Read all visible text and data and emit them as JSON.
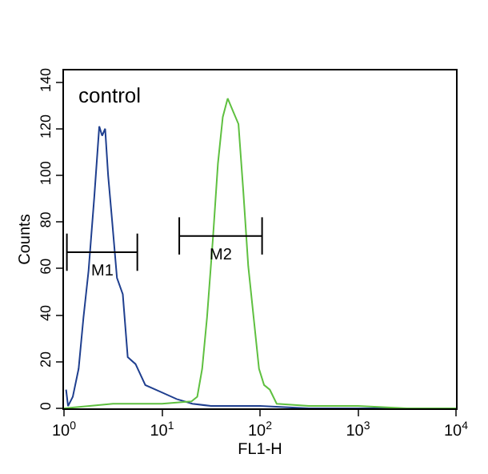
{
  "chart_data": {
    "type": "line",
    "xlabel": "FL1-H",
    "ylabel": "Counts",
    "log": "x",
    "marker": "none",
    "line_style": "solid",
    "xlim": [
      1,
      10000
    ],
    "xticks": [
      {
        "value": 1,
        "label": "10$^{0}$"
      },
      {
        "value": 10,
        "label": "10$^{1}$"
      },
      {
        "value": 100,
        "label": "10$^{2}$"
      },
      {
        "value": 1000,
        "label": "10$^{3}$"
      },
      {
        "value": 10000,
        "label": "10$^{4}$"
      }
    ],
    "ylim": [
      0,
      145
    ],
    "yticks": [
      0,
      20,
      40,
      60,
      80,
      100,
      120,
      140
    ],
    "annotations": [
      "control",
      {
        "text": "M1",
        "x": 2.45,
        "y": 64
      },
      {
        "text": "M2",
        "x": 39.7,
        "y": 71
      }
    ],
    "series": [
      {
        "color": "#1f3f8f",
        "x": [
          1.05,
          1.1,
          1.23,
          1.41,
          1.58,
          1.78,
          2.04,
          2.29,
          2.45,
          2.63,
          2.82,
          3.09,
          3.47,
          3.98,
          4.47,
          5.37,
          6.76,
          9.77,
          14.1,
          20.4,
          31.6,
          100,
          316,
          1000,
          10000
        ],
        "values": [
          8,
          1,
          5,
          17,
          39,
          59,
          91,
          121,
          117,
          120,
          100,
          81,
          56,
          49,
          22,
          19,
          10,
          7,
          4,
          2,
          1,
          1,
          0,
          0,
          0
        ]
      },
      {
        "color": "#5fc040",
        "x": [
          1,
          3.16,
          10,
          20,
          22.9,
          25.7,
          28.8,
          33.1,
          37.2,
          41.7,
          46.8,
          53.7,
          60.3,
          67.6,
          75.9,
          87.1,
          97.7,
          110,
          126,
          148,
          316,
          1000,
          3162,
          10000
        ],
        "values": [
          0,
          2,
          2,
          3,
          5,
          17,
          39,
          73,
          105,
          125,
          133,
          127,
          122,
          93,
          61,
          37,
          17,
          10,
          8,
          2,
          1,
          1,
          0,
          0
        ]
      },
      {
        "color": "#000000",
        "x": [
          1.07,
          5.6
        ],
        "values": [
          67,
          67
        ],
        "errors": [
          8,
          8
        ]
      },
      {
        "color": "#000000",
        "x": [
          15,
          105
        ],
        "values": [
          74,
          74
        ],
        "errors": [
          8,
          8
        ]
      }
    ]
  }
}
